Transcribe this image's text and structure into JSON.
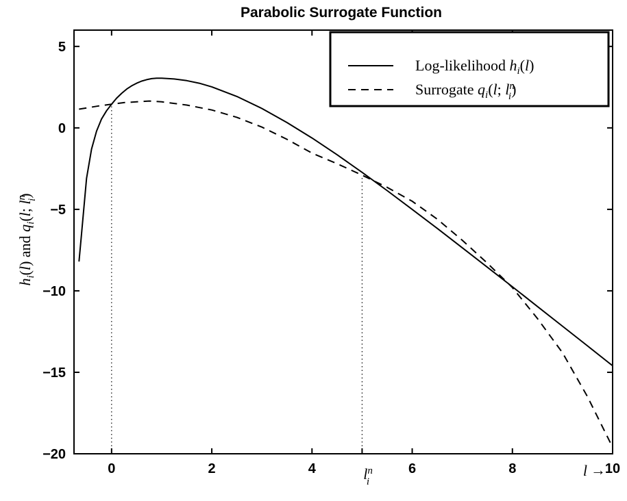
{
  "chart_data": {
    "type": "line",
    "title": "Parabolic Surrogate Function",
    "xlabel": "l →",
    "ylabel": "h_i(l) and q_i(l; l_i^n)",
    "xlim": [
      -0.75,
      10
    ],
    "ylim": [
      -20,
      6
    ],
    "xticks": [
      0,
      2,
      4,
      6,
      8,
      10
    ],
    "xtick_labels": [
      "0",
      "2",
      "4",
      "6",
      "8",
      "10"
    ],
    "yticks": [
      5,
      0,
      -5,
      -10,
      -15,
      -20
    ],
    "ytick_labels": [
      "5",
      "0",
      "−5",
      "−10",
      "−15",
      "−20"
    ],
    "extra_xtick_label": "l_i^n",
    "grid": false,
    "legend_position": "top-right",
    "series": [
      {
        "name": "Log-likelihood h_i(l)",
        "style": "solid",
        "x": [
          -0.65,
          -0.6,
          -0.5,
          -0.4,
          -0.3,
          -0.2,
          -0.1,
          0,
          0.1,
          0.2,
          0.3,
          0.4,
          0.5,
          0.6,
          0.7,
          0.8,
          0.9,
          1.0,
          1.25,
          1.5,
          1.75,
          2.0,
          2.5,
          3.0,
          3.5,
          4.0,
          4.5,
          5.0,
          5.5,
          6.0,
          6.5,
          7.0,
          7.5,
          8.0,
          8.5,
          9.0,
          9.5,
          10.0
        ],
        "y": [
          -8.2,
          -6.5,
          -3.1,
          -1.3,
          -0.2,
          0.55,
          1.05,
          1.45,
          1.82,
          2.12,
          2.38,
          2.58,
          2.74,
          2.87,
          2.96,
          3.02,
          3.05,
          3.05,
          3.0,
          2.9,
          2.74,
          2.52,
          1.93,
          1.19,
          0.33,
          -0.62,
          -1.65,
          -2.73,
          -3.85,
          -5.0,
          -6.17,
          -7.36,
          -8.55,
          -9.75,
          -10.96,
          -12.17,
          -13.38,
          -14.6
        ]
      },
      {
        "name": "Surrogate q_i(l; l_i^n)",
        "style": "dashed",
        "x": [
          -0.65,
          -0.25,
          0,
          0.25,
          0.5,
          0.75,
          1.0,
          1.5,
          2.0,
          2.5,
          3.0,
          3.5,
          4.0,
          4.5,
          5.0,
          5.5,
          6.0,
          6.5,
          7.0,
          7.5,
          8.0,
          8.5,
          9.0,
          9.5,
          10.0
        ],
        "y": [
          1.15,
          1.35,
          1.45,
          1.55,
          1.6,
          1.65,
          1.6,
          1.4,
          1.1,
          0.65,
          0.05,
          -0.7,
          -1.55,
          -2.2,
          -2.9,
          -3.65,
          -4.5,
          -5.6,
          -6.9,
          -8.3,
          -9.8,
          -11.7,
          -13.8,
          -16.5,
          -19.6
        ]
      }
    ],
    "reference_lines": [
      {
        "x": 0,
        "y_top": 1.45,
        "style": "dotted"
      },
      {
        "x": 5,
        "y_top": -2.9,
        "style": "dotted"
      }
    ]
  },
  "legend": {
    "entry1_prefix": "Log-likelihood ",
    "entry2_prefix": "Surrogate "
  }
}
